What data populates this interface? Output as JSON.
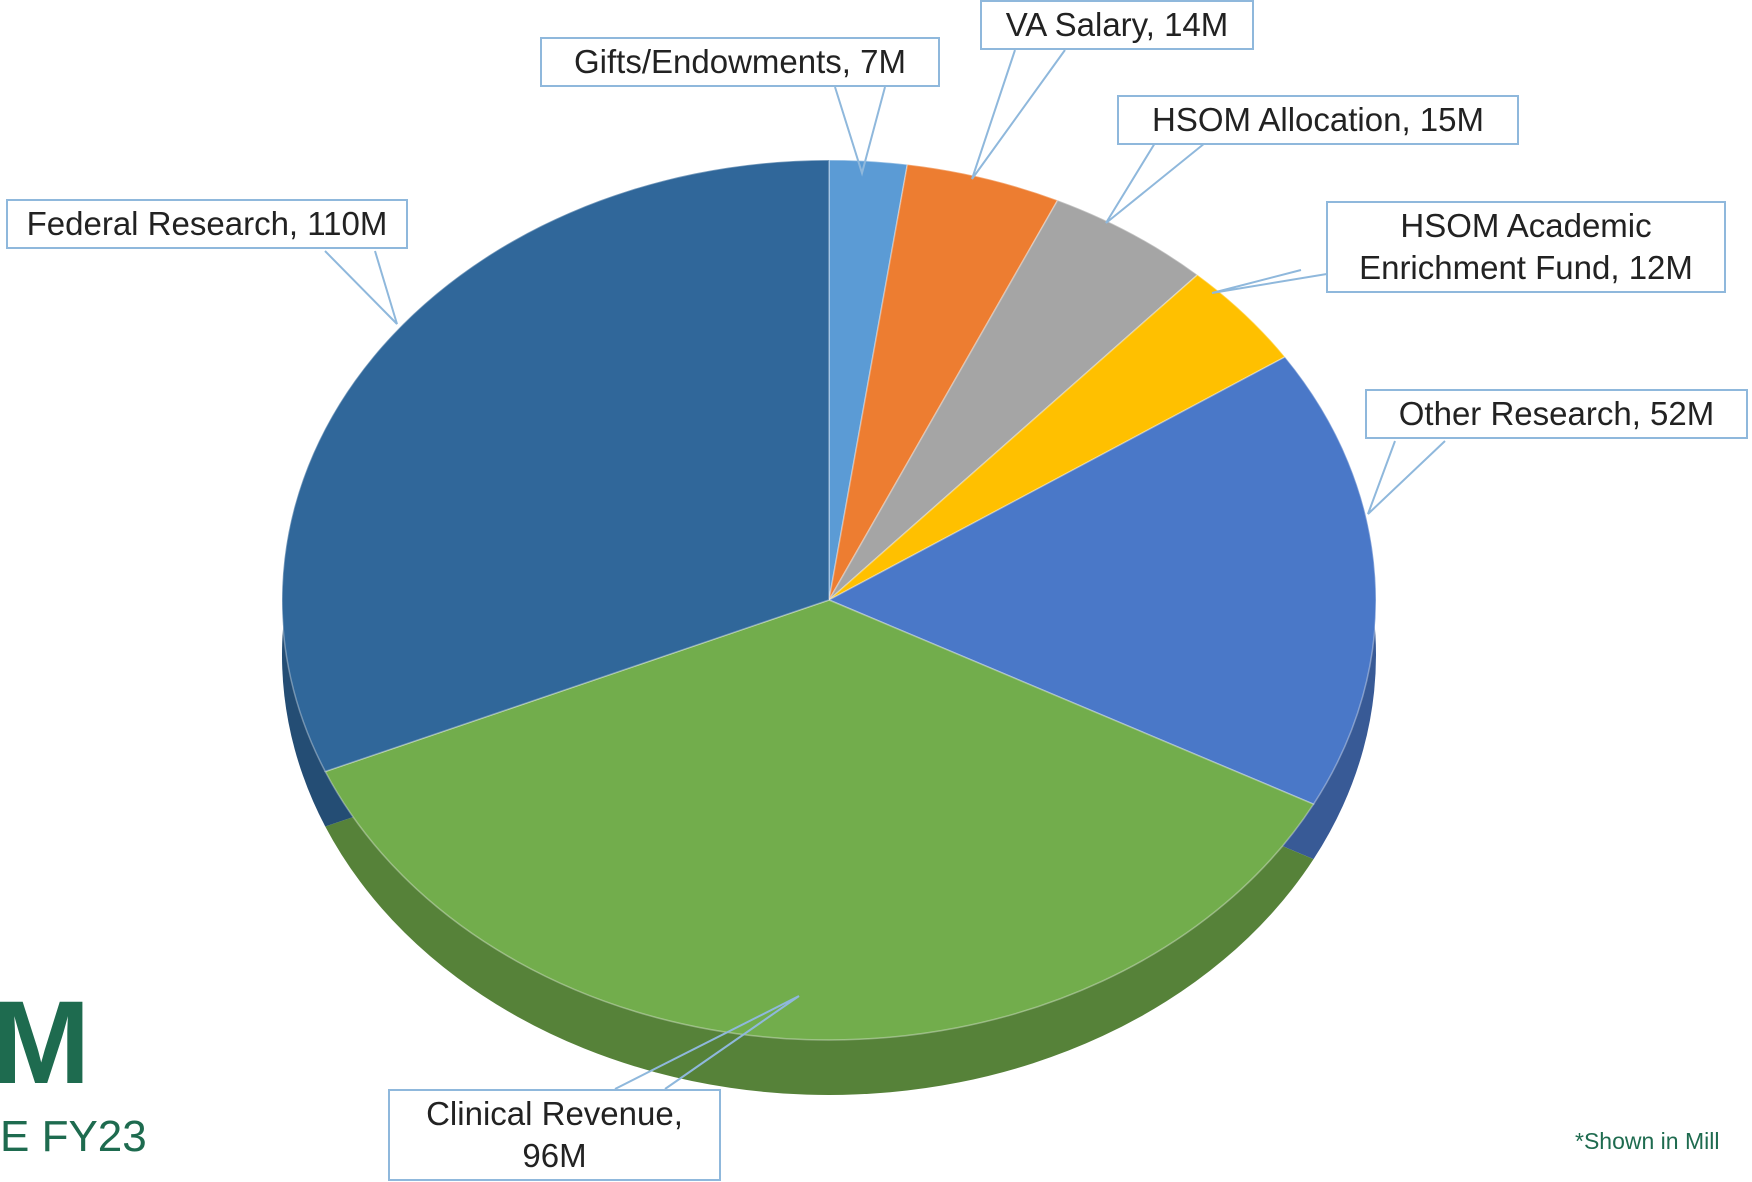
{
  "chart_data": {
    "type": "pie",
    "labels": [
      "Gifts/Endowments, 7M",
      "VA Salary, 14M",
      "HSOM Allocation, 15M",
      "HSOM Academic Enrichment Fund, 12M",
      "Other Research, 52M",
      "Federal Research, 110M",
      "Clinical Revenue, 96M"
    ],
    "values": [
      7,
      14,
      15,
      12,
      52,
      110,
      96
    ],
    "colors": [
      "#5b9bd5",
      "#ed7d31",
      "#a5a5a5",
      "#ffc000",
      "#4a78c8",
      "#72ad4c",
      "#30679a"
    ]
  },
  "slide": {
    "logo_fragment": "M",
    "subtitle_fragment": "E FY23",
    "footnote_fragment": "*Shown in Mill"
  }
}
